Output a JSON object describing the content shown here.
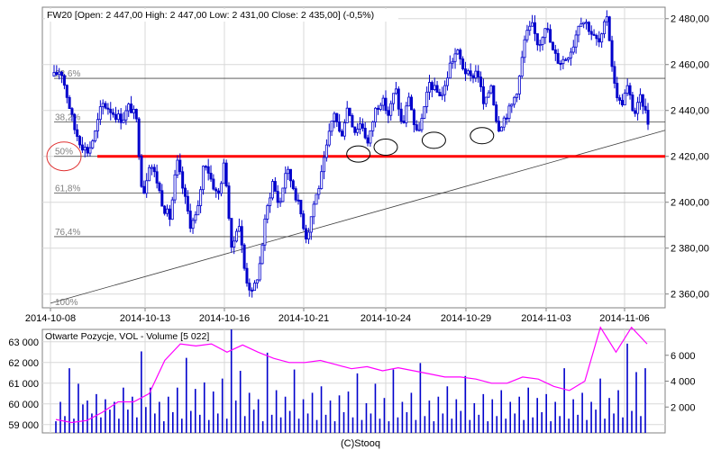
{
  "chart_data": [
    {
      "type": "candlestick",
      "title": "FW20 [Open: 2 447,00  High: 2 447,00  Low: 2 431,00  Close: 2 435,00] (-0,5%)",
      "ylim": [
        2354,
        2485
      ],
      "y_ticks": [
        2360,
        2380,
        2400,
        2420,
        2440,
        2460,
        2480
      ],
      "y_tick_labels": [
        "2 360,00",
        "2 380,00",
        "2 400,00",
        "2 420,00",
        "2 440,00",
        "2 460,00",
        "2 480,00"
      ],
      "x_ticks": [
        "2014-10-08",
        "2014-10-13",
        "2014-10-16",
        "2014-10-21",
        "2014-10-24",
        "2014-10-29",
        "2014-11-03",
        "2014-11-06"
      ],
      "grid": true,
      "price_path_closes": [
        2455,
        2458,
        2445,
        2432,
        2425,
        2422,
        2430,
        2443,
        2441,
        2438,
        2436,
        2442,
        2437,
        2402,
        2418,
        2410,
        2398,
        2393,
        2418,
        2404,
        2390,
        2395,
        2419,
        2410,
        2402,
        2418,
        2378,
        2393,
        2368,
        2360,
        2370,
        2394,
        2409,
        2398,
        2415,
        2407,
        2397,
        2384,
        2399,
        2409,
        2425,
        2440,
        2428,
        2442,
        2431,
        2435,
        2425,
        2440,
        2445,
        2438,
        2450,
        2432,
        2447,
        2429,
        2437,
        2452,
        2448,
        2447,
        2460,
        2466,
        2458,
        2454,
        2458,
        2441,
        2452,
        2432,
        2437,
        2442,
        2451,
        2472,
        2477,
        2468,
        2478,
        2466,
        2461,
        2463,
        2468,
        2480,
        2478,
        2472,
        2469,
        2482,
        2452,
        2442,
        2450,
        2438,
        2446,
        2435
      ],
      "fibonacci_levels": [
        {
          "label": "23,6%",
          "value": 2454
        },
        {
          "label": "38,2%",
          "value": 2435
        },
        {
          "label": "50%",
          "value": 2420
        },
        {
          "label": "61,8%",
          "value": 2404
        },
        {
          "label": "76,4%",
          "value": 2385
        },
        {
          "label": "100%",
          "value": 2354
        }
      ],
      "support_line": {
        "value": 2420,
        "color": "#ff0000",
        "from_date": "2014-10-08"
      },
      "trendline": {
        "from": [
          "2014-10-08",
          2356
        ],
        "to": [
          "2014-11-06",
          2429
        ]
      },
      "highlight_marks": [
        {
          "date": "2014-10-08",
          "value": 2420,
          "color": "#e03030"
        },
        {
          "date": "2014-10-23",
          "value": 2421,
          "color": "#000000"
        },
        {
          "date": "2014-10-24",
          "value": 2424,
          "color": "#000000"
        },
        {
          "date": "2014-10-27",
          "value": 2427,
          "color": "#000000"
        },
        {
          "date": "2014-10-30",
          "value": 2429,
          "color": "#000000"
        }
      ],
      "colors": {
        "candles": "#0000cc",
        "support": "#ff0000",
        "fib_lines": "#444444"
      }
    },
    {
      "type": "bar+line",
      "title": "Otwarte Pozycje, VOL - Volume [5 022]",
      "left_axis": {
        "name": "Otwarte Pozycje",
        "ticks": [
          59000,
          60000,
          61000,
          62000,
          63000
        ],
        "tick_labels": [
          "59 000",
          "60 000",
          "61 000",
          "62 000",
          "63 000"
        ],
        "ylim": [
          58600,
          63600
        ]
      },
      "right_axis": {
        "name": "VOL - Volume",
        "ticks": [
          2000,
          4000,
          6000
        ],
        "tick_labels": [
          "2 000",
          "4 000",
          "6 000"
        ],
        "ylim": [
          0,
          8000
        ]
      },
      "open_interest_path": [
        59250,
        59100,
        59200,
        59600,
        60100,
        60100,
        60500,
        62100,
        62900,
        62800,
        62900,
        62500,
        62850,
        62500,
        62200,
        62000,
        62000,
        62100,
        61900,
        61700,
        61800,
        61600,
        61750,
        61600,
        61450,
        61300,
        61300,
        61200,
        61000,
        61000,
        61300,
        61200,
        60850,
        60650,
        61100,
        63700,
        62500,
        63700,
        62900
      ],
      "volume_values": [
        900,
        2400,
        1300,
        5000,
        1100,
        3800,
        2200,
        2500,
        1500,
        3000,
        1200,
        2600,
        1800,
        2400,
        1100,
        3500,
        1800,
        2800,
        1200,
        6300,
        2000,
        3500,
        1500,
        2400,
        900,
        2800,
        1600,
        3500,
        1100,
        5800,
        1700,
        3400,
        1400,
        3900,
        1000,
        3200,
        1500,
        4200,
        1100,
        8000,
        2500,
        4800,
        1300,
        3100,
        1800,
        2600,
        900,
        6200,
        1400,
        3300,
        1200,
        2800,
        1700,
        4900,
        1100,
        2600,
        1500,
        3100,
        1000,
        3600,
        1400,
        2500,
        900,
        2900,
        1600,
        3200,
        1200,
        4600,
        1000,
        2300,
        1500,
        3800,
        1100,
        2700,
        900,
        4900,
        1200,
        2400,
        1600,
        3100,
        1000,
        5400,
        1300,
        2500,
        900,
        2800,
        1500,
        3600,
        1100,
        2600,
        1700,
        4400,
        1000,
        2300,
        1400,
        3000,
        900,
        2600,
        1300,
        3300,
        1100,
        2400,
        1500,
        2800,
        1000,
        3500,
        1200,
        2700,
        1600,
        3000,
        900,
        2400,
        1300,
        5000,
        1100,
        2600,
        1400,
        3100,
        1000,
        2400,
        1800,
        4200,
        1100,
        2700,
        1500,
        3300,
        1200,
        6900,
        1700,
        4700,
        1300,
        5000
      ],
      "colors": {
        "volume": "#0000cc",
        "open_interest": "#ff00ff"
      }
    }
  ],
  "footer": {
    "credit": "(C)Stooq"
  }
}
